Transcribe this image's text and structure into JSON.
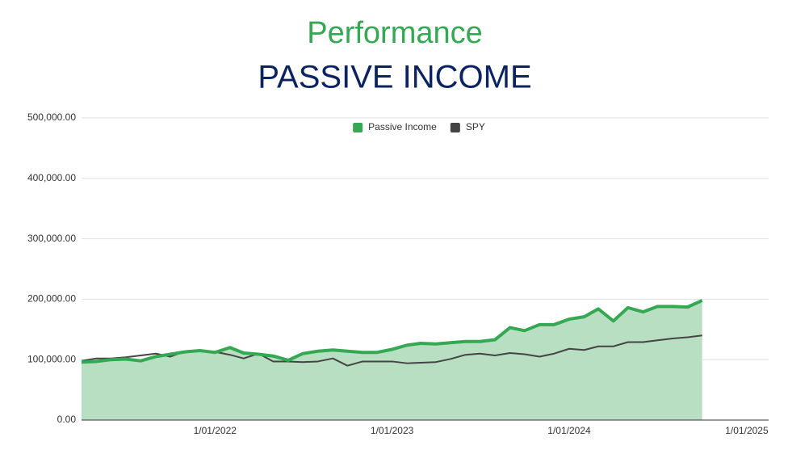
{
  "chart_data": {
    "type": "area_line",
    "title": "Performance",
    "subtitle": "PASSIVE INCOME",
    "x": [
      "2021-04-01",
      "2021-05-01",
      "2021-06-01",
      "2021-07-01",
      "2021-08-01",
      "2021-09-01",
      "2021-10-01",
      "2021-11-01",
      "2021-12-01",
      "2022-01-01",
      "2022-02-01",
      "2022-03-01",
      "2022-04-01",
      "2022-05-01",
      "2022-06-01",
      "2022-07-01",
      "2022-08-01",
      "2022-09-01",
      "2022-10-01",
      "2022-11-01",
      "2022-12-01",
      "2023-01-01",
      "2023-02-01",
      "2023-03-01",
      "2023-04-01",
      "2023-05-01",
      "2023-06-01",
      "2023-07-01",
      "2023-08-01",
      "2023-09-01",
      "2023-10-01",
      "2023-11-01",
      "2023-12-01",
      "2024-01-01",
      "2024-02-01",
      "2024-03-01",
      "2024-04-01",
      "2024-05-01",
      "2024-06-01",
      "2024-07-01",
      "2024-08-01",
      "2024-09-01",
      "2024-10-01"
    ],
    "series": [
      {
        "name": "Passive Income",
        "color": "#34a853",
        "fill": "#b9dfc2",
        "area": true,
        "values": [
          96000,
          97000,
          100000,
          101000,
          98000,
          105000,
          109000,
          113000,
          115000,
          112000,
          120000,
          111000,
          109000,
          106000,
          99000,
          110000,
          114000,
          116000,
          114000,
          112000,
          112000,
          117000,
          124000,
          127000,
          126000,
          128000,
          130000,
          130000,
          133000,
          153000,
          148000,
          158000,
          158000,
          167000,
          171000,
          184000,
          164000,
          186000,
          179000,
          188000,
          188000,
          187000,
          198000
        ]
      },
      {
        "name": "SPY",
        "color": "#444444",
        "area": false,
        "values": [
          98000,
          102000,
          102000,
          104000,
          107000,
          110000,
          105000,
          114000,
          114000,
          113000,
          108000,
          102000,
          110000,
          97000,
          97000,
          96000,
          97000,
          102000,
          90000,
          97000,
          97000,
          97000,
          94000,
          95000,
          96000,
          101000,
          108000,
          110000,
          107000,
          111000,
          109000,
          105000,
          110000,
          118000,
          116000,
          122000,
          122000,
          129000,
          129000,
          132000,
          135000,
          137000,
          140000
        ]
      }
    ],
    "xlim": [
      "2021-04-01",
      "2025-02-15"
    ],
    "xticks": [
      {
        "value": "2022-01-01",
        "label": "1/01/2022"
      },
      {
        "value": "2023-01-01",
        "label": "1/01/2023"
      },
      {
        "value": "2024-01-01",
        "label": "1/01/2024"
      },
      {
        "value": "2025-01-01",
        "label": "1/01/2025"
      }
    ],
    "ylim": [
      0,
      500000
    ],
    "yticks": [
      {
        "value": 0,
        "label": "0.00"
      },
      {
        "value": 100000,
        "label": "100,000.00"
      },
      {
        "value": 200000,
        "label": "200,000.00"
      },
      {
        "value": 300000,
        "label": "300,000.00"
      },
      {
        "value": 400000,
        "label": "400,000.00"
      },
      {
        "value": 500000,
        "label": "500,000.00"
      }
    ],
    "grid": true,
    "legend": "top"
  }
}
